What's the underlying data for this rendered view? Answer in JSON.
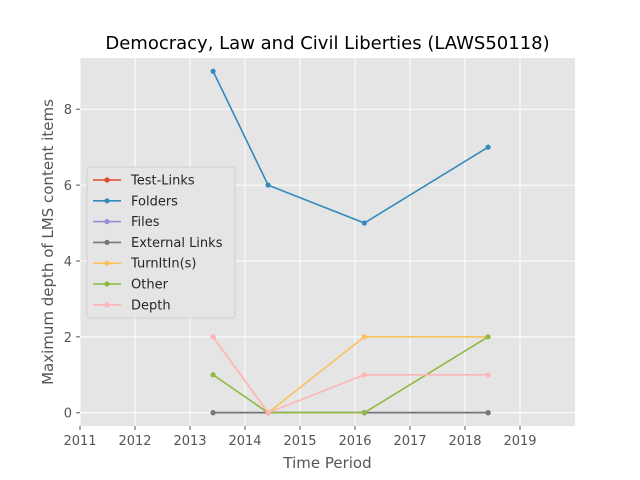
{
  "chart_data": {
    "type": "line",
    "title": "Democracy, Law and Civil Liberties (LAWS50118)",
    "xlabel": "Time Period",
    "ylabel": "Maximum depth of LMS content items",
    "xlim": [
      2011,
      2020
    ],
    "ylim": [
      -0.35,
      9.35
    ],
    "xticks": [
      2011,
      2012,
      2013,
      2014,
      2015,
      2016,
      2017,
      2018,
      2019
    ],
    "xtick_labels": [
      "2011",
      "2012",
      "2013",
      "2014",
      "2015",
      "2016",
      "2017",
      "2018",
      "2019"
    ],
    "yticks": [
      0,
      2,
      4,
      6,
      8
    ],
    "ytick_labels": [
      "0",
      "2",
      "4",
      "6",
      "8"
    ],
    "grid": true,
    "legend_position": "center-left",
    "x": [
      2013.42,
      2014.42,
      2016.17,
      2018.42
    ],
    "series": [
      {
        "name": "Test-Links",
        "color": "#E24A33",
        "values": [
          0,
          0,
          0,
          0
        ]
      },
      {
        "name": "Folders",
        "color": "#348ABD",
        "values": [
          9,
          6,
          5,
          7
        ]
      },
      {
        "name": "Files",
        "color": "#988ED5",
        "values": [
          0,
          0,
          0,
          0
        ]
      },
      {
        "name": "External Links",
        "color": "#777777",
        "values": [
          0,
          0,
          0,
          0
        ]
      },
      {
        "name": "TurnItIn(s)",
        "color": "#FBC15E",
        "values": [
          2,
          0,
          2,
          2
        ]
      },
      {
        "name": "Other",
        "color": "#8EBA42",
        "values": [
          1,
          0,
          0,
          2
        ]
      },
      {
        "name": "Depth",
        "color": "#FFB5B8",
        "values": [
          2,
          0,
          1,
          1
        ]
      }
    ],
    "colors": {
      "plot_background": "#E5E5E5",
      "grid": "#FFFFFF",
      "legend_background": "#E5E5E5",
      "legend_border": "#CCCCCC"
    }
  }
}
